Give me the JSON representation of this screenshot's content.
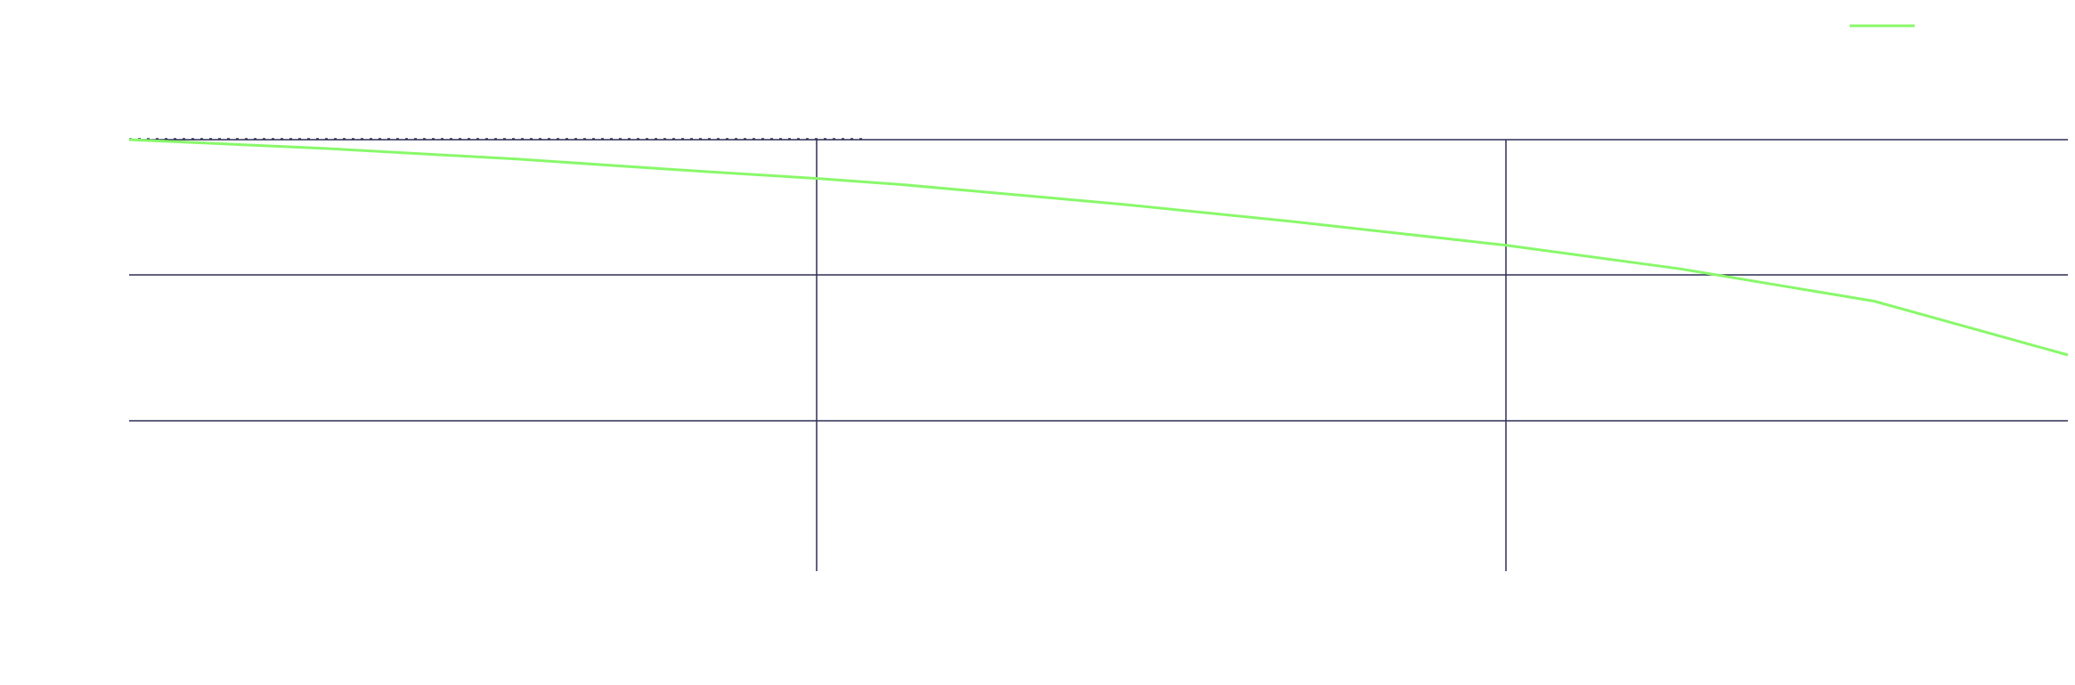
{
  "chart_data": {
    "type": "line",
    "title": "",
    "xlabel": "",
    "ylabel": "",
    "xlim": [
      0,
      1
    ],
    "ylim": [
      -1,
      1
    ],
    "grid": true,
    "legend": "top-right",
    "series": [
      {
        "color": "#88f86a",
        "x": [
          0,
          0.1,
          0.2,
          0.3,
          0.355,
          0.4,
          0.5,
          0.512,
          0.6,
          0.7,
          0.71,
          0.8,
          0.9,
          1.0
        ],
        "y": [
          1.0,
          0.96,
          0.91,
          0.85,
          0.82,
          0.79,
          0.71,
          0.7,
          0.62,
          0.52,
          0.51,
          0.4,
          0.25,
          0.0
        ]
      }
    ]
  },
  "colors": {
    "grid": "#2f2f55",
    "background": "#ffffff"
  }
}
